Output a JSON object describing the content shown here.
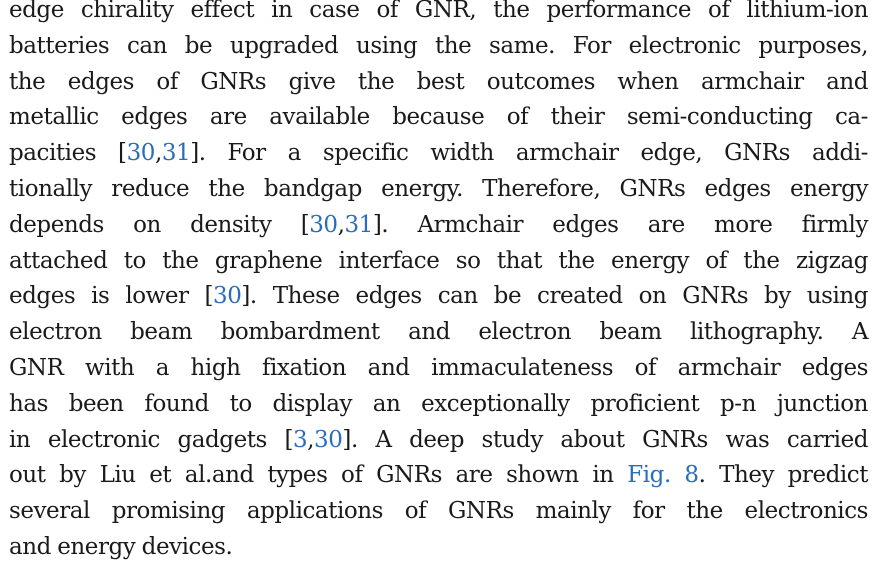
{
  "lines": [
    {
      "parts": [
        {
          "t": "edge chirality effect in case of GNR, the performance of lithium-ion"
        }
      ]
    },
    {
      "parts": [
        {
          "t": "batteries can be upgraded using the same. For electronic purposes,"
        }
      ]
    },
    {
      "parts": [
        {
          "t": "the edges of GNRs give the best outcomes when armchair and"
        }
      ]
    },
    {
      "parts": [
        {
          "t": "metallic edges are available because of their semi-conducting ca-"
        }
      ]
    },
    {
      "parts": [
        {
          "t": "pacities ["
        },
        {
          "t": "30",
          "ref": true
        },
        {
          "t": ","
        },
        {
          "t": "31",
          "ref": true
        },
        {
          "t": "]. For a specific width armchair edge, GNRs addi-"
        }
      ]
    },
    {
      "parts": [
        {
          "t": "tionally reduce the bandgap energy. Therefore, GNRs edges energy"
        }
      ]
    },
    {
      "parts": [
        {
          "t": "depends on density ["
        },
        {
          "t": "30",
          "ref": true
        },
        {
          "t": ","
        },
        {
          "t": "31",
          "ref": true
        },
        {
          "t": "]. Armchair edges are more firmly"
        }
      ]
    },
    {
      "parts": [
        {
          "t": "attached to the graphene interface so that the energy of the zigzag"
        }
      ]
    },
    {
      "parts": [
        {
          "t": "edges is lower ["
        },
        {
          "t": "30",
          "ref": true
        },
        {
          "t": "]. These edges can be created on GNRs by using"
        }
      ]
    },
    {
      "parts": [
        {
          "t": "electron beam bombardment and electron beam lithography. A"
        }
      ]
    },
    {
      "parts": [
        {
          "t": "GNR with a high fixation and immaculateness of armchair edges"
        }
      ]
    },
    {
      "parts": [
        {
          "t": "has been found to display an exceptionally proficient p-n junction"
        }
      ]
    },
    {
      "parts": [
        {
          "t": "in electronic gadgets ["
        },
        {
          "t": "3",
          "ref": true
        },
        {
          "t": ","
        },
        {
          "t": "30",
          "ref": true
        },
        {
          "t": "]. A deep study about GNRs was carried"
        }
      ]
    },
    {
      "parts": [
        {
          "t": "out by Liu et al.and types of GNRs are shown in "
        },
        {
          "t": "Fig. 8",
          "ref": true
        },
        {
          "t": ". They predict"
        }
      ]
    },
    {
      "parts": [
        {
          "t": "several promising applications of GNRs mainly for the electronics"
        }
      ]
    },
    {
      "parts": [
        {
          "t": "and energy devices."
        }
      ]
    }
  ],
  "colors": {
    "text": "#1a1a1a",
    "link": "#2a6ebb"
  }
}
